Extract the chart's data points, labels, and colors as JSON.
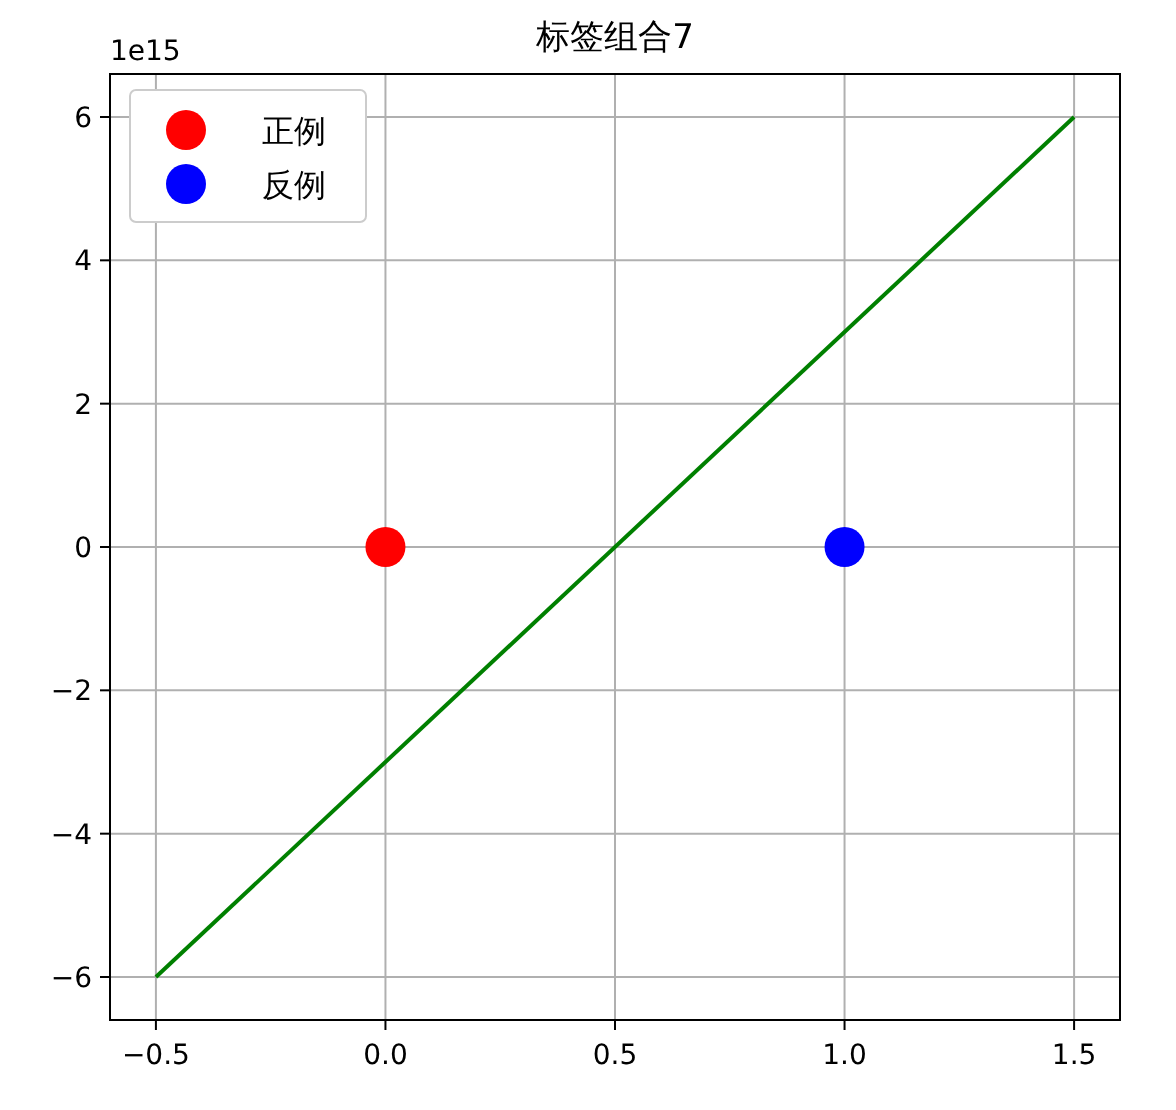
{
  "chart_data": {
    "type": "scatter",
    "title": "标签组合7",
    "xlim": [
      -0.6,
      1.6
    ],
    "xticks": [
      {
        "value": -0.5,
        "label": "−0.5"
      },
      {
        "value": 0,
        "label": "0.0"
      },
      0.5,
      {
        "value": 1,
        "label": "1.0"
      },
      1.5
    ],
    "ylim": [
      -6.6,
      6.6
    ],
    "yticks": [
      {
        "value": -6,
        "label": "−6"
      },
      {
        "value": -4,
        "label": "−4"
      },
      {
        "value": -2,
        "label": "−2"
      },
      0,
      2,
      4,
      6
    ],
    "annotations": [
      "1e15"
    ],
    "grid": true,
    "legend": "top left",
    "series": [
      {
        "name": "正例",
        "marker": "circle",
        "color": "#ff0000",
        "x": [
          0.0
        ],
        "values": [
          0
        ]
      },
      {
        "name": "反例",
        "marker": "circle",
        "color": "#0000ff",
        "x": [
          1.0
        ],
        "values": [
          0
        ]
      },
      {
        "type": "line",
        "color": "#008000",
        "x": [
          -0.5,
          1.5
        ],
        "values": [
          -6,
          6
        ]
      }
    ]
  }
}
